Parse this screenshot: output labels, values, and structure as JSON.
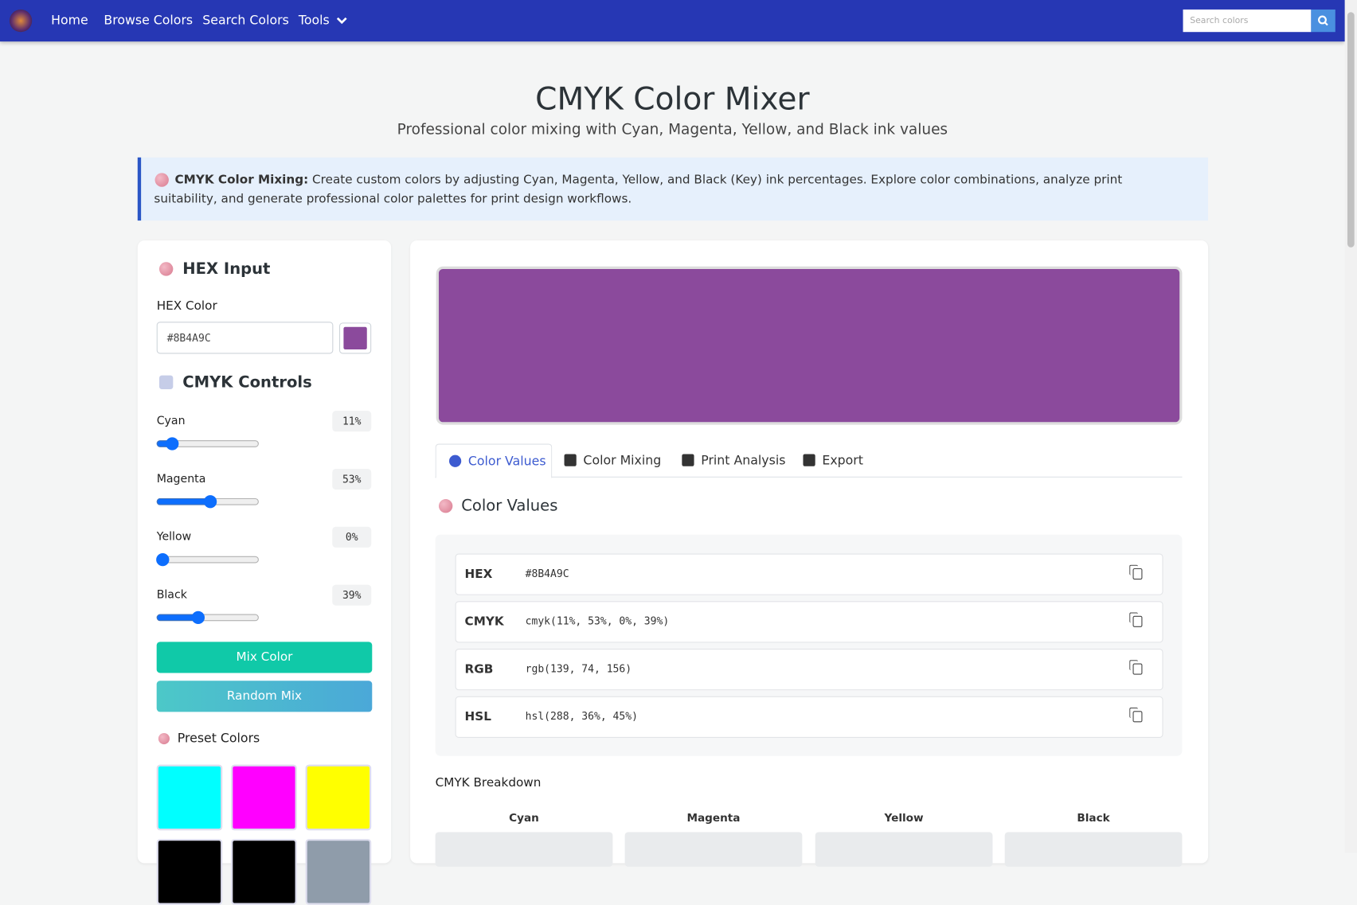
{
  "nav": {
    "links": [
      "Home",
      "Browse Colors",
      "Search Colors",
      "Tools"
    ],
    "search_placeholder": "Search colors"
  },
  "header": {
    "title": "CMYK Color Mixer",
    "subtitle": "Professional color mixing with Cyan, Magenta, Yellow, and Black ink values"
  },
  "alert": {
    "strong": "CMYK Color Mixing:",
    "text": "Create custom colors by adjusting Cyan, Magenta, Yellow, and Black (Key) ink percentages. Explore color combinations, analyze print suitability, and generate professional color palettes for print design workflows."
  },
  "controls": {
    "hex_title": "HEX Input",
    "hex_label": "HEX Color",
    "hex_value": "#8B4A9C",
    "cmyk_title": "CMYK Controls",
    "sliders": [
      {
        "label": "Cyan",
        "value": 11,
        "display": "11%"
      },
      {
        "label": "Magenta",
        "value": 53,
        "display": "53%"
      },
      {
        "label": "Yellow",
        "value": 0,
        "display": "0%"
      },
      {
        "label": "Black",
        "value": 39,
        "display": "39%"
      }
    ],
    "buttons": [
      "Mix Color",
      "Random Mix"
    ],
    "preset_title": "Preset Colors",
    "presets": [
      "#00FFFF",
      "#FF00FF",
      "#FFFF00",
      "#000000",
      "#000000",
      "#8F9CAA"
    ]
  },
  "result": {
    "tabs": [
      "Color Values",
      "Color Mixing",
      "Print Analysis",
      "Export"
    ],
    "section_title": "Color Values",
    "rows": [
      [
        "HEX",
        "#8B4A9C"
      ],
      [
        "CMYK",
        "cmyk(11%, 53%, 0%, 39%)"
      ],
      [
        "RGB",
        "rgb(139, 74, 156)"
      ],
      [
        "HSL",
        "hsl(288, 36%, 45%)"
      ]
    ],
    "breakdown_title": "CMYK Breakdown",
    "breakdown": [
      "Cyan",
      "Magenta",
      "Yellow",
      "Black"
    ]
  }
}
